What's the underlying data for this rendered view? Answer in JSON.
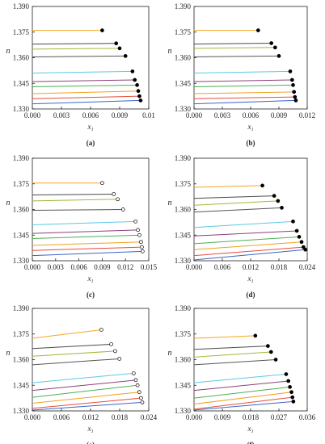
{
  "chart_data": [
    {
      "panel_label": "(a)",
      "type": "line",
      "xlabel": "x₁",
      "ylabel": "n",
      "xlim": [
        0,
        0.01
      ],
      "ylim": [
        1.33,
        1.39
      ],
      "xticks": [
        "0.000",
        "0.003",
        "0.006",
        "0.009",
        "0.01"
      ],
      "yticks": [
        "1.330",
        "1.345",
        "1.360",
        "1.375",
        "1.390"
      ],
      "endpoint_style": "filled",
      "series": [
        {
          "color": "#f5a623",
          "values": [
            [
              0.0,
              1.376
            ],
            [
              0.006,
              1.376
            ]
          ]
        },
        {
          "color": "#4a4a4a",
          "values": [
            [
              0.0,
              1.368
            ],
            [
              0.0072,
              1.3684
            ]
          ]
        },
        {
          "color": "#9bbb3b",
          "values": [
            [
              0.0,
              1.365
            ],
            [
              0.0075,
              1.3655
            ]
          ]
        },
        {
          "color": "#555555",
          "values": [
            [
              0.0,
              1.3605
            ],
            [
              0.008,
              1.361
            ]
          ]
        },
        {
          "color": "#5bc8e8",
          "values": [
            [
              0.0,
              1.351
            ],
            [
              0.0086,
              1.352
            ]
          ]
        },
        {
          "color": "#8e3f7a",
          "values": [
            [
              0.0,
              1.346
            ],
            [
              0.0088,
              1.347
            ]
          ]
        },
        {
          "color": "#4caf50",
          "values": [
            [
              0.0,
              1.343
            ],
            [
              0.009,
              1.344
            ]
          ]
        },
        {
          "color": "#f0a020",
          "values": [
            [
              0.0,
              1.339
            ],
            [
              0.0091,
              1.3405
            ]
          ]
        },
        {
          "color": "#e74c3c",
          "values": [
            [
              0.0,
              1.336
            ],
            [
              0.0092,
              1.3375
            ]
          ]
        },
        {
          "color": "#3a66c4",
          "values": [
            [
              0.0,
              1.333
            ],
            [
              0.0093,
              1.335
            ]
          ]
        }
      ]
    },
    {
      "panel_label": "(b)",
      "type": "line",
      "xlabel": "x₁",
      "ylabel": "n",
      "xlim": [
        0,
        0.012
      ],
      "ylim": [
        1.33,
        1.39
      ],
      "xticks": [
        "0.000",
        "0.003",
        "0.006",
        "0.009",
        "0.012"
      ],
      "yticks": [
        "1.330",
        "1.345",
        "1.360",
        "1.375",
        "1.390"
      ],
      "endpoint_style": "filled",
      "series": [
        {
          "color": "#f5a623",
          "values": [
            [
              0.0,
              1.376
            ],
            [
              0.0068,
              1.376
            ]
          ]
        },
        {
          "color": "#4a4a4a",
          "values": [
            [
              0.0,
              1.368
            ],
            [
              0.0082,
              1.3685
            ]
          ]
        },
        {
          "color": "#9bbb3b",
          "values": [
            [
              0.0,
              1.3655
            ],
            [
              0.0086,
              1.366
            ]
          ]
        },
        {
          "color": "#555555",
          "values": [
            [
              0.0,
              1.3605
            ],
            [
              0.009,
              1.361
            ]
          ]
        },
        {
          "color": "#5bc8e8",
          "values": [
            [
              0.0,
              1.351
            ],
            [
              0.0102,
              1.352
            ]
          ]
        },
        {
          "color": "#8e3f7a",
          "values": [
            [
              0.0,
              1.346
            ],
            [
              0.0104,
              1.347
            ]
          ]
        },
        {
          "color": "#4caf50",
          "values": [
            [
              0.0,
              1.343
            ],
            [
              0.0105,
              1.344
            ]
          ]
        },
        {
          "color": "#f0a020",
          "values": [
            [
              0.0,
              1.339
            ],
            [
              0.0106,
              1.34
            ]
          ]
        },
        {
          "color": "#e74c3c",
          "values": [
            [
              0.0,
              1.336
            ],
            [
              0.0107,
              1.337
            ]
          ]
        },
        {
          "color": "#3a66c4",
          "values": [
            [
              0.0,
              1.333
            ],
            [
              0.0108,
              1.335
            ]
          ]
        }
      ]
    },
    {
      "panel_label": "(c)",
      "type": "line",
      "xlabel": "x₁",
      "ylabel": "n",
      "xlim": [
        0,
        0.015
      ],
      "ylim": [
        1.33,
        1.39
      ],
      "xticks": [
        "0.000",
        "0.003",
        "0.006",
        "0.009",
        "0.012",
        "0.015"
      ],
      "yticks": [
        "1.330",
        "1.345",
        "1.360",
        "1.375",
        "1.390"
      ],
      "endpoint_style": "open",
      "series": [
        {
          "color": "#f5a623",
          "values": [
            [
              0.0,
              1.3755
            ],
            [
              0.009,
              1.3755
            ]
          ]
        },
        {
          "color": "#4a4a4a",
          "values": [
            [
              0.0,
              1.3685
            ],
            [
              0.0105,
              1.369
            ]
          ]
        },
        {
          "color": "#9bbb3b",
          "values": [
            [
              0.0,
              1.365
            ],
            [
              0.011,
              1.366
            ]
          ]
        },
        {
          "color": "#555555",
          "values": [
            [
              0.0,
              1.3595
            ],
            [
              0.0117,
              1.36
            ]
          ]
        },
        {
          "color": "#5bc8e8",
          "values": [
            [
              0.0,
              1.351
            ],
            [
              0.0133,
              1.353
            ]
          ]
        },
        {
          "color": "#8e3f7a",
          "values": [
            [
              0.0,
              1.346
            ],
            [
              0.0136,
              1.348
            ]
          ]
        },
        {
          "color": "#4caf50",
          "values": [
            [
              0.0,
              1.343
            ],
            [
              0.0138,
              1.345
            ]
          ]
        },
        {
          "color": "#f0a020",
          "values": [
            [
              0.0,
              1.339
            ],
            [
              0.014,
              1.341
            ]
          ]
        },
        {
          "color": "#e74c3c",
          "values": [
            [
              0.0,
              1.336
            ],
            [
              0.0141,
              1.338
            ]
          ]
        },
        {
          "color": "#3a66c4",
          "values": [
            [
              0.0,
              1.333
            ],
            [
              0.0142,
              1.3355
            ]
          ]
        }
      ]
    },
    {
      "panel_label": "(d)",
      "type": "line",
      "xlabel": "x₁",
      "ylabel": "n",
      "xlim": [
        0,
        0.024
      ],
      "ylim": [
        1.33,
        1.39
      ],
      "xticks": [
        "0.000",
        "0.006",
        "0.012",
        "0.018",
        "0.024"
      ],
      "yticks": [
        "1.330",
        "1.345",
        "1.360",
        "1.375",
        "1.390"
      ],
      "endpoint_style": "filled",
      "series": [
        {
          "color": "#f5a623",
          "values": [
            [
              0.0,
              1.373
            ],
            [
              0.0145,
              1.374
            ]
          ]
        },
        {
          "color": "#4a4a4a",
          "values": [
            [
              0.0,
              1.3665
            ],
            [
              0.017,
              1.368
            ]
          ]
        },
        {
          "color": "#9bbb3b",
          "values": [
            [
              0.0,
              1.3625
            ],
            [
              0.0178,
              1.365
            ]
          ]
        },
        {
          "color": "#555555",
          "values": [
            [
              0.0,
              1.3585
            ],
            [
              0.0186,
              1.361
            ]
          ]
        },
        {
          "color": "#5bc8e8",
          "values": [
            [
              0.0,
              1.3495
            ],
            [
              0.021,
              1.353
            ]
          ]
        },
        {
          "color": "#8e3f7a",
          "values": [
            [
              0.0,
              1.3445
            ],
            [
              0.0218,
              1.3475
            ]
          ]
        },
        {
          "color": "#4caf50",
          "values": [
            [
              0.0,
              1.34
            ],
            [
              0.0223,
              1.344
            ]
          ]
        },
        {
          "color": "#f0a020",
          "values": [
            [
              0.0,
              1.3365
            ],
            [
              0.0228,
              1.341
            ]
          ]
        },
        {
          "color": "#e74c3c",
          "values": [
            [
              0.0,
              1.333
            ],
            [
              0.0232,
              1.338
            ]
          ]
        },
        {
          "color": "#3a66c4",
          "values": [
            [
              0.0,
              1.3305
            ],
            [
              0.0236,
              1.3365
            ]
          ]
        }
      ]
    },
    {
      "panel_label": "(e)",
      "type": "line",
      "xlabel": "x₁",
      "ylabel": "n",
      "xlim": [
        0,
        0.027
      ],
      "ylim": [
        1.33,
        1.39
      ],
      "xticks": [
        "0.000",
        "0.006",
        "0.012",
        "0.018",
        "0.024"
      ],
      "yticks": [
        "1.330",
        "1.345",
        "1.360",
        "1.375",
        "1.390"
      ],
      "endpoint_style": "open",
      "series": [
        {
          "color": "#f5a623",
          "values": [
            [
              0.0,
              1.3725
            ],
            [
              0.016,
              1.3775
            ]
          ]
        },
        {
          "color": "#4a4a4a",
          "values": [
            [
              0.0,
              1.3665
            ],
            [
              0.0183,
              1.369
            ]
          ]
        },
        {
          "color": "#9bbb3b",
          "values": [
            [
              0.0,
              1.362
            ],
            [
              0.0192,
              1.365
            ]
          ]
        },
        {
          "color": "#555555",
          "values": [
            [
              0.0,
              1.357
            ],
            [
              0.0202,
              1.3605
            ]
          ]
        },
        {
          "color": "#5bc8e8",
          "values": [
            [
              0.0,
              1.3465
            ],
            [
              0.0235,
              1.352
            ]
          ]
        },
        {
          "color": "#8e3f7a",
          "values": [
            [
              0.0,
              1.342
            ],
            [
              0.024,
              1.348
            ]
          ]
        },
        {
          "color": "#4caf50",
          "values": [
            [
              0.0,
              1.338
            ],
            [
              0.0244,
              1.345
            ]
          ]
        },
        {
          "color": "#f0a020",
          "values": [
            [
              0.0,
              1.3345
            ],
            [
              0.0248,
              1.341
            ]
          ]
        },
        {
          "color": "#e74c3c",
          "values": [
            [
              0.0,
              1.3315
            ],
            [
              0.0252,
              1.3375
            ]
          ]
        },
        {
          "color": "#3a66c4",
          "values": [
            [
              0.0,
              1.3305
            ],
            [
              0.0255,
              1.335
            ]
          ]
        }
      ]
    },
    {
      "panel_label": "(f)",
      "type": "line",
      "xlabel": "x₁",
      "ylabel": "n",
      "xlim": [
        0,
        0.036
      ],
      "ylim": [
        1.33,
        1.39
      ],
      "xticks": [
        "0.000",
        "0.009",
        "0.018",
        "0.027",
        "0.036"
      ],
      "yticks": [
        "1.330",
        "1.345",
        "1.360",
        "1.375",
        "1.390"
      ],
      "endpoint_style": "filled",
      "series": [
        {
          "color": "#f5a623",
          "values": [
            [
              0.0,
              1.3725
            ],
            [
              0.0195,
              1.374
            ]
          ]
        },
        {
          "color": "#4a4a4a",
          "values": [
            [
              0.0,
              1.366
            ],
            [
              0.0235,
              1.368
            ]
          ]
        },
        {
          "color": "#9bbb3b",
          "values": [
            [
              0.0,
              1.3615
            ],
            [
              0.0245,
              1.3645
            ]
          ]
        },
        {
          "color": "#555555",
          "values": [
            [
              0.0,
              1.357
            ],
            [
              0.026,
              1.36
            ]
          ]
        },
        {
          "color": "#5bc8e8",
          "values": [
            [
              0.0,
              1.3465
            ],
            [
              0.0293,
              1.3515
            ]
          ]
        },
        {
          "color": "#8e3f7a",
          "values": [
            [
              0.0,
              1.342
            ],
            [
              0.03,
              1.3475
            ]
          ]
        },
        {
          "color": "#4caf50",
          "values": [
            [
              0.0,
              1.3375
            ],
            [
              0.0305,
              1.344
            ]
          ]
        },
        {
          "color": "#f0a020",
          "values": [
            [
              0.0,
              1.334
            ],
            [
              0.031,
              1.341
            ]
          ]
        },
        {
          "color": "#e74c3c",
          "values": [
            [
              0.0,
              1.331
            ],
            [
              0.0313,
              1.338
            ]
          ]
        },
        {
          "color": "#3a66c4",
          "values": [
            [
              0.0,
              1.3305
            ],
            [
              0.0316,
              1.3355
            ]
          ]
        }
      ]
    }
  ]
}
